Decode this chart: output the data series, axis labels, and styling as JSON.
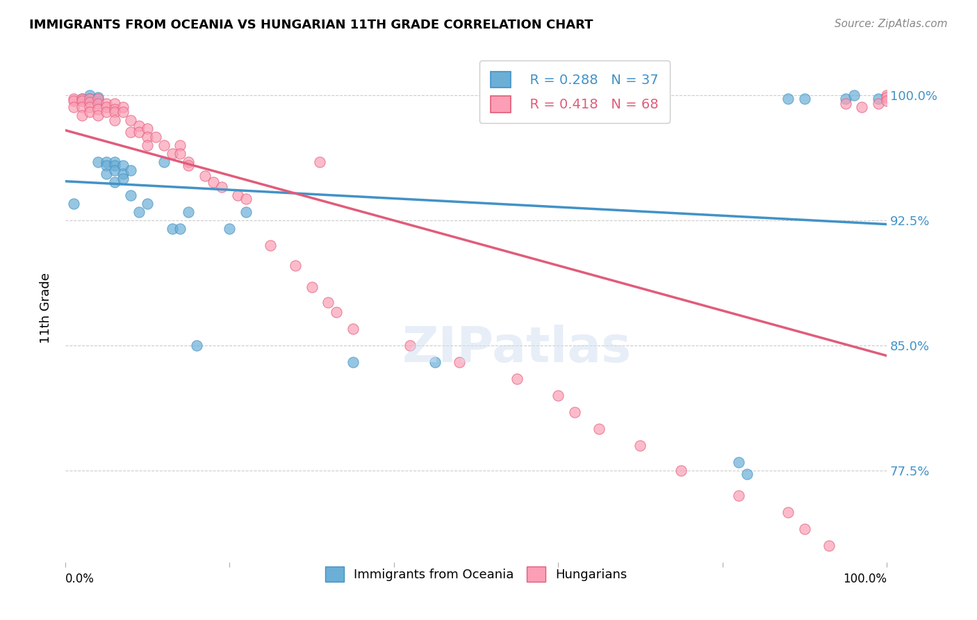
{
  "title": "IMMIGRANTS FROM OCEANIA VS HUNGARIAN 11TH GRADE CORRELATION CHART",
  "source": "Source: ZipAtlas.com",
  "ylabel": "11th Grade",
  "yticks": [
    77.5,
    85.0,
    92.5,
    100.0
  ],
  "ytick_labels": [
    "77.5%",
    "85.0%",
    "92.5%",
    "100.0%"
  ],
  "xlim": [
    0.0,
    1.0
  ],
  "ylim": [
    0.72,
    1.025
  ],
  "legend_blue_r": "R = 0.288",
  "legend_blue_n": "N = 37",
  "legend_pink_r": "R = 0.418",
  "legend_pink_n": "N = 68",
  "blue_color": "#6baed6",
  "pink_color": "#fc9eb5",
  "blue_line_color": "#4292c6",
  "pink_line_color": "#e05c7a",
  "blue_scatter_x": [
    0.01,
    0.02,
    0.03,
    0.03,
    0.04,
    0.04,
    0.04,
    0.05,
    0.05,
    0.05,
    0.06,
    0.06,
    0.06,
    0.06,
    0.07,
    0.07,
    0.07,
    0.08,
    0.08,
    0.09,
    0.1,
    0.12,
    0.13,
    0.14,
    0.15,
    0.16,
    0.2,
    0.22,
    0.35,
    0.45,
    0.82,
    0.83,
    0.88,
    0.9,
    0.95,
    0.96,
    0.99
  ],
  "blue_scatter_y": [
    0.935,
    0.998,
    1.0,
    0.998,
    0.999,
    0.997,
    0.96,
    0.96,
    0.958,
    0.953,
    0.96,
    0.958,
    0.955,
    0.948,
    0.958,
    0.953,
    0.95,
    0.955,
    0.94,
    0.93,
    0.935,
    0.96,
    0.92,
    0.92,
    0.93,
    0.85,
    0.92,
    0.93,
    0.84,
    0.84,
    0.78,
    0.773,
    0.998,
    0.998,
    0.998,
    1.0,
    0.998
  ],
  "pink_scatter_x": [
    0.01,
    0.01,
    0.01,
    0.02,
    0.02,
    0.02,
    0.02,
    0.03,
    0.03,
    0.03,
    0.03,
    0.04,
    0.04,
    0.04,
    0.04,
    0.05,
    0.05,
    0.05,
    0.06,
    0.06,
    0.06,
    0.06,
    0.07,
    0.07,
    0.08,
    0.08,
    0.09,
    0.09,
    0.1,
    0.1,
    0.1,
    0.11,
    0.12,
    0.13,
    0.14,
    0.14,
    0.15,
    0.15,
    0.17,
    0.18,
    0.19,
    0.21,
    0.22,
    0.25,
    0.28,
    0.3,
    0.31,
    0.32,
    0.33,
    0.35,
    0.42,
    0.48,
    0.55,
    0.6,
    0.62,
    0.65,
    0.7,
    0.75,
    0.82,
    0.88,
    0.9,
    0.93,
    0.95,
    0.97,
    0.99,
    1.0,
    1.0,
    1.0
  ],
  "pink_scatter_y": [
    0.998,
    0.997,
    0.993,
    0.998,
    0.997,
    0.993,
    0.988,
    0.998,
    0.996,
    0.993,
    0.99,
    0.998,
    0.995,
    0.992,
    0.988,
    0.995,
    0.993,
    0.99,
    0.995,
    0.992,
    0.99,
    0.985,
    0.993,
    0.99,
    0.985,
    0.978,
    0.982,
    0.978,
    0.98,
    0.975,
    0.97,
    0.975,
    0.97,
    0.965,
    0.97,
    0.965,
    0.96,
    0.958,
    0.952,
    0.948,
    0.945,
    0.94,
    0.938,
    0.91,
    0.898,
    0.885,
    0.96,
    0.876,
    0.87,
    0.86,
    0.85,
    0.84,
    0.83,
    0.82,
    0.81,
    0.8,
    0.79,
    0.775,
    0.76,
    0.75,
    0.74,
    0.73,
    0.995,
    0.993,
    0.995,
    1.0,
    0.999,
    0.997
  ],
  "background_color": "#ffffff",
  "grid_color": "#cccccc"
}
